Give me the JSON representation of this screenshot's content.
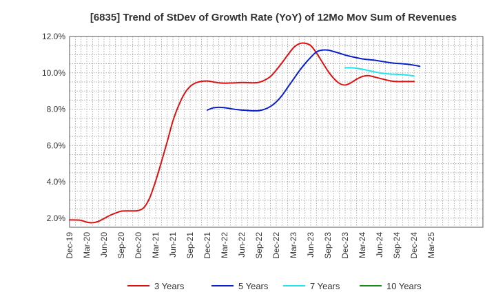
{
  "chart_data": {
    "type": "line",
    "title": "[6835]  Trend of StDev of Growth Rate (YoY) of 12Mo Mov Sum of Revenues",
    "xlabel": "",
    "ylabel": "",
    "ylim": [
      1.5,
      12.0
    ],
    "yticks": [
      2.0,
      4.0,
      6.0,
      8.0,
      10.0,
      12.0
    ],
    "ytick_labels": [
      "2.0%",
      "4.0%",
      "6.0%",
      "8.0%",
      "10.0%",
      "12.0%"
    ],
    "xlim_months": [
      0,
      72
    ],
    "xticks": [
      {
        "m": 0,
        "label": "Dec-19"
      },
      {
        "m": 3,
        "label": "Mar-20"
      },
      {
        "m": 6,
        "label": "Jun-20"
      },
      {
        "m": 9,
        "label": "Sep-20"
      },
      {
        "m": 12,
        "label": "Dec-20"
      },
      {
        "m": 15,
        "label": "Mar-21"
      },
      {
        "m": 18,
        "label": "Jun-21"
      },
      {
        "m": 21,
        "label": "Sep-21"
      },
      {
        "m": 24,
        "label": "Dec-21"
      },
      {
        "m": 27,
        "label": "Mar-22"
      },
      {
        "m": 30,
        "label": "Jun-22"
      },
      {
        "m": 33,
        "label": "Sep-22"
      },
      {
        "m": 36,
        "label": "Dec-22"
      },
      {
        "m": 39,
        "label": "Mar-23"
      },
      {
        "m": 42,
        "label": "Jun-23"
      },
      {
        "m": 45,
        "label": "Sep-23"
      },
      {
        "m": 48,
        "label": "Dec-23"
      },
      {
        "m": 51,
        "label": "Mar-24"
      },
      {
        "m": 54,
        "label": "Jun-24"
      },
      {
        "m": 57,
        "label": "Sep-24"
      },
      {
        "m": 60,
        "label": "Dec-24"
      },
      {
        "m": 63,
        "label": "Mar-25"
      }
    ],
    "grid": true,
    "legend_position": "bottom",
    "series": [
      {
        "name": "3 Years",
        "color": "#dd1111",
        "start_month": 0,
        "values": [
          1.9,
          1.9,
          1.88,
          1.78,
          1.75,
          1.82,
          1.98,
          2.15,
          2.28,
          2.38,
          2.4,
          2.4,
          2.42,
          2.6,
          3.15,
          4.05,
          5.1,
          6.2,
          7.35,
          8.2,
          8.85,
          9.25,
          9.45,
          9.53,
          9.55,
          9.5,
          9.45,
          9.43,
          9.44,
          9.45,
          9.47,
          9.46,
          9.45,
          9.48,
          9.6,
          9.8,
          10.15,
          10.55,
          10.98,
          11.38,
          11.6,
          11.63,
          11.5,
          11.1,
          10.6,
          10.1,
          9.7,
          9.42,
          9.33,
          9.45,
          9.65,
          9.8,
          9.85,
          9.78,
          9.7,
          9.62,
          9.55,
          9.52,
          9.52,
          9.52,
          9.52
        ]
      },
      {
        "name": "5 Years",
        "color": "#0a1fcc",
        "start_month": 24,
        "values": [
          7.95,
          8.07,
          8.1,
          8.08,
          8.03,
          7.98,
          7.95,
          7.93,
          7.91,
          7.92,
          8.0,
          8.15,
          8.4,
          8.75,
          9.2,
          9.65,
          10.1,
          10.5,
          10.85,
          11.15,
          11.25,
          11.25,
          11.17,
          11.08,
          10.98,
          10.9,
          10.83,
          10.77,
          10.73,
          10.7,
          10.65,
          10.6,
          10.55,
          10.52,
          10.5,
          10.47,
          10.42,
          10.36
        ]
      },
      {
        "name": "7 Years",
        "color": "#22e4ec",
        "start_month": 48,
        "values": [
          10.28,
          10.28,
          10.25,
          10.2,
          10.13,
          10.06,
          10.0,
          9.96,
          9.93,
          9.92,
          9.9,
          9.87,
          9.83
        ]
      },
      {
        "name": "10 Years",
        "color": "#1a8a1a",
        "start_month": 48,
        "values": []
      }
    ]
  }
}
